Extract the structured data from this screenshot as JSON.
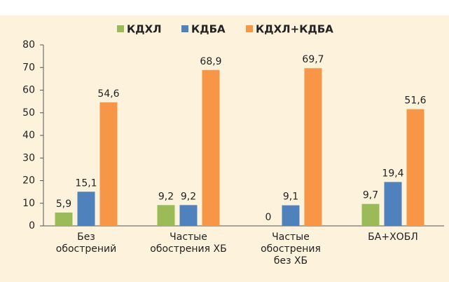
{
  "chart_data": {
    "type": "bar",
    "categories": [
      "Без\nобострений",
      "Частые\nобострения ХБ",
      "Частые\nобострения\nбез ХБ",
      "БА+ХОБЛ"
    ],
    "series": [
      {
        "name": "КДХЛ",
        "color": "#9bbb59",
        "values": [
          5.9,
          9.2,
          0,
          9.7
        ],
        "value_labels": [
          "5,9",
          "9,2",
          "0",
          "9,7"
        ]
      },
      {
        "name": "КДБА",
        "color": "#4f81bd",
        "values": [
          15.1,
          9.2,
          9.1,
          19.4
        ],
        "value_labels": [
          "15,1",
          "9,2",
          "9,1",
          "19,4"
        ]
      },
      {
        "name": "КДХЛ+КДБА",
        "color": "#f79646",
        "values": [
          54.6,
          68.9,
          69.7,
          51.6
        ],
        "value_labels": [
          "54,6",
          "68,9",
          "69,7",
          "51,6"
        ]
      }
    ],
    "ylim": [
      0,
      80
    ],
    "yticks": [
      0,
      10,
      20,
      30,
      40,
      50,
      60,
      70,
      80
    ],
    "grid": false,
    "legend": "top"
  }
}
